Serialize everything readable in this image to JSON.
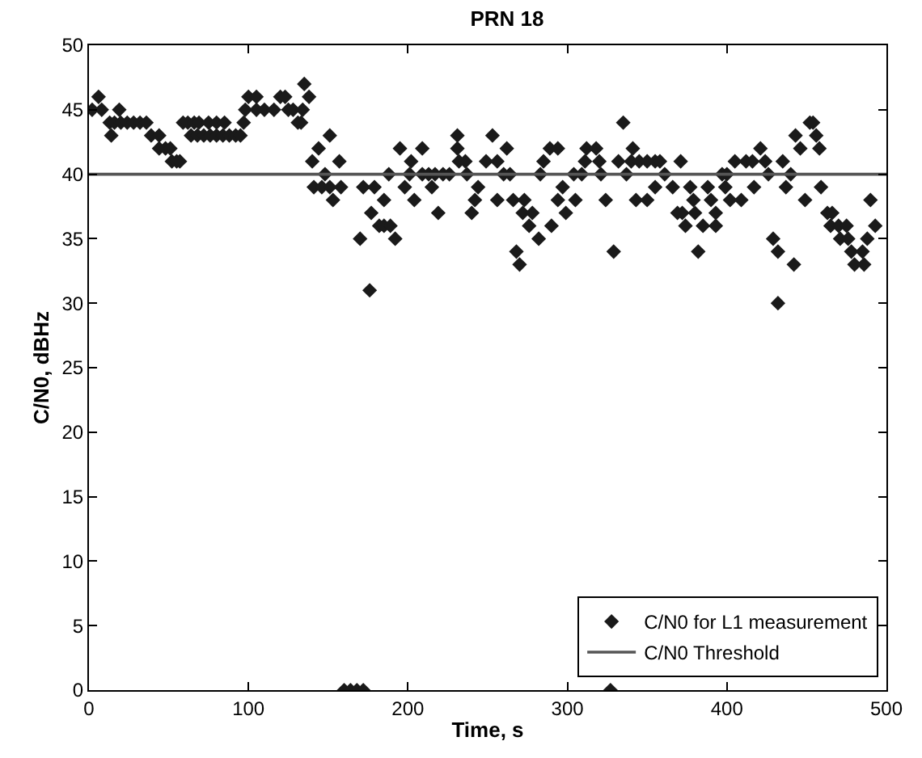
{
  "chart_data": {
    "type": "scatter",
    "title": "PRN 18",
    "xlabel": "Time, s",
    "ylabel": "C/N0, dBHz",
    "xlim": [
      0,
      500
    ],
    "xticks": [
      0,
      100,
      200,
      300,
      400,
      500
    ],
    "ylim": [
      0,
      50
    ],
    "yticks": [
      0,
      5,
      10,
      15,
      20,
      25,
      30,
      35,
      40,
      45,
      50
    ],
    "legend": "bottom right",
    "series": [
      {
        "name": "C/N0 for L1 measurement",
        "marker": "diamond",
        "color": "#1a1a1a",
        "x": [
          2,
          6,
          8,
          13,
          14,
          16,
          19,
          20,
          24,
          28,
          32,
          36,
          39,
          44,
          44,
          48,
          51,
          52,
          55,
          57,
          59,
          62,
          64,
          66,
          68,
          69,
          72,
          75,
          76,
          80,
          80,
          84,
          85,
          88,
          92,
          95,
          97,
          98,
          100,
          105,
          105,
          110,
          116,
          120,
          123,
          125,
          128,
          131,
          133,
          134,
          135,
          138,
          140,
          141,
          144,
          146,
          148,
          151,
          151,
          153,
          157,
          158,
          160,
          164,
          168,
          172,
          170,
          172,
          176,
          177,
          179,
          182,
          185,
          185,
          188,
          189,
          192,
          195,
          198,
          201,
          202,
          204,
          209,
          209,
          213,
          215,
          217,
          219,
          222,
          226,
          231,
          231,
          232,
          236,
          237,
          240,
          242,
          244,
          249,
          253,
          256,
          256,
          260,
          262,
          264,
          266,
          268,
          270,
          272,
          273,
          276,
          278,
          282,
          283,
          285,
          289,
          290,
          294,
          294,
          297,
          299,
          304,
          305,
          309,
          311,
          312,
          318,
          320,
          321,
          324,
          327,
          329,
          332,
          335,
          337,
          340,
          341,
          343,
          345,
          350,
          350,
          355,
          355,
          358,
          361,
          366,
          369,
          371,
          372,
          374,
          377,
          379,
          380,
          382,
          385,
          388,
          390,
          393,
          393,
          397,
          399,
          400,
          402,
          405,
          409,
          412,
          416,
          417,
          421,
          424,
          426,
          429,
          432,
          432,
          435,
          437,
          440,
          442,
          443,
          446,
          449,
          452,
          454,
          456,
          458,
          459,
          463,
          465,
          466,
          470,
          471,
          475,
          476,
          478,
          480,
          485,
          486,
          488,
          490,
          493
        ],
        "values": [
          45,
          46,
          45,
          44,
          43,
          44,
          45,
          44,
          44,
          44,
          44,
          44,
          43,
          43,
          42,
          42,
          42,
          41,
          41,
          41,
          44,
          44,
          43,
          44,
          43,
          44,
          43,
          44,
          43,
          43,
          44,
          43,
          44,
          43,
          43,
          43,
          44,
          45,
          46,
          46,
          45,
          45,
          45,
          46,
          46,
          45,
          45,
          44,
          44,
          45,
          47,
          46,
          41,
          39,
          42,
          39,
          40,
          43,
          39,
          38,
          41,
          39,
          0,
          0,
          0,
          0,
          35,
          39,
          31,
          37,
          39,
          36,
          36,
          38,
          40,
          36,
          35,
          42,
          39,
          40,
          41,
          38,
          42,
          40,
          40,
          39,
          40,
          37,
          40,
          40,
          43,
          42,
          41,
          41,
          40,
          37,
          38,
          39,
          41,
          43,
          41,
          38,
          40,
          42,
          40,
          38,
          34,
          33,
          37,
          38,
          36,
          37,
          35,
          40,
          41,
          42,
          36,
          42,
          38,
          39,
          37,
          40,
          38,
          40,
          41,
          42,
          42,
          41,
          40,
          38,
          0,
          34,
          41,
          44,
          40,
          41,
          42,
          38,
          41,
          41,
          38,
          39,
          41,
          41,
          40,
          39,
          37,
          41,
          37,
          36,
          39,
          38,
          37,
          34,
          36,
          39,
          38,
          37,
          36,
          40,
          39,
          40,
          38,
          41,
          38,
          41,
          41,
          39,
          42,
          41,
          40,
          35,
          34,
          30,
          41,
          39,
          40,
          33,
          43,
          42,
          38,
          44,
          44,
          43,
          42,
          39,
          37,
          36,
          37,
          36,
          35,
          36,
          35,
          34,
          33,
          34,
          33,
          35,
          38,
          36
        ]
      },
      {
        "name": "C/N0 Threshold",
        "type": "line",
        "line_style": "solid",
        "marker": "none",
        "color": "#555555",
        "x": [
          0,
          500
        ],
        "values": [
          40,
          40
        ]
      }
    ]
  }
}
